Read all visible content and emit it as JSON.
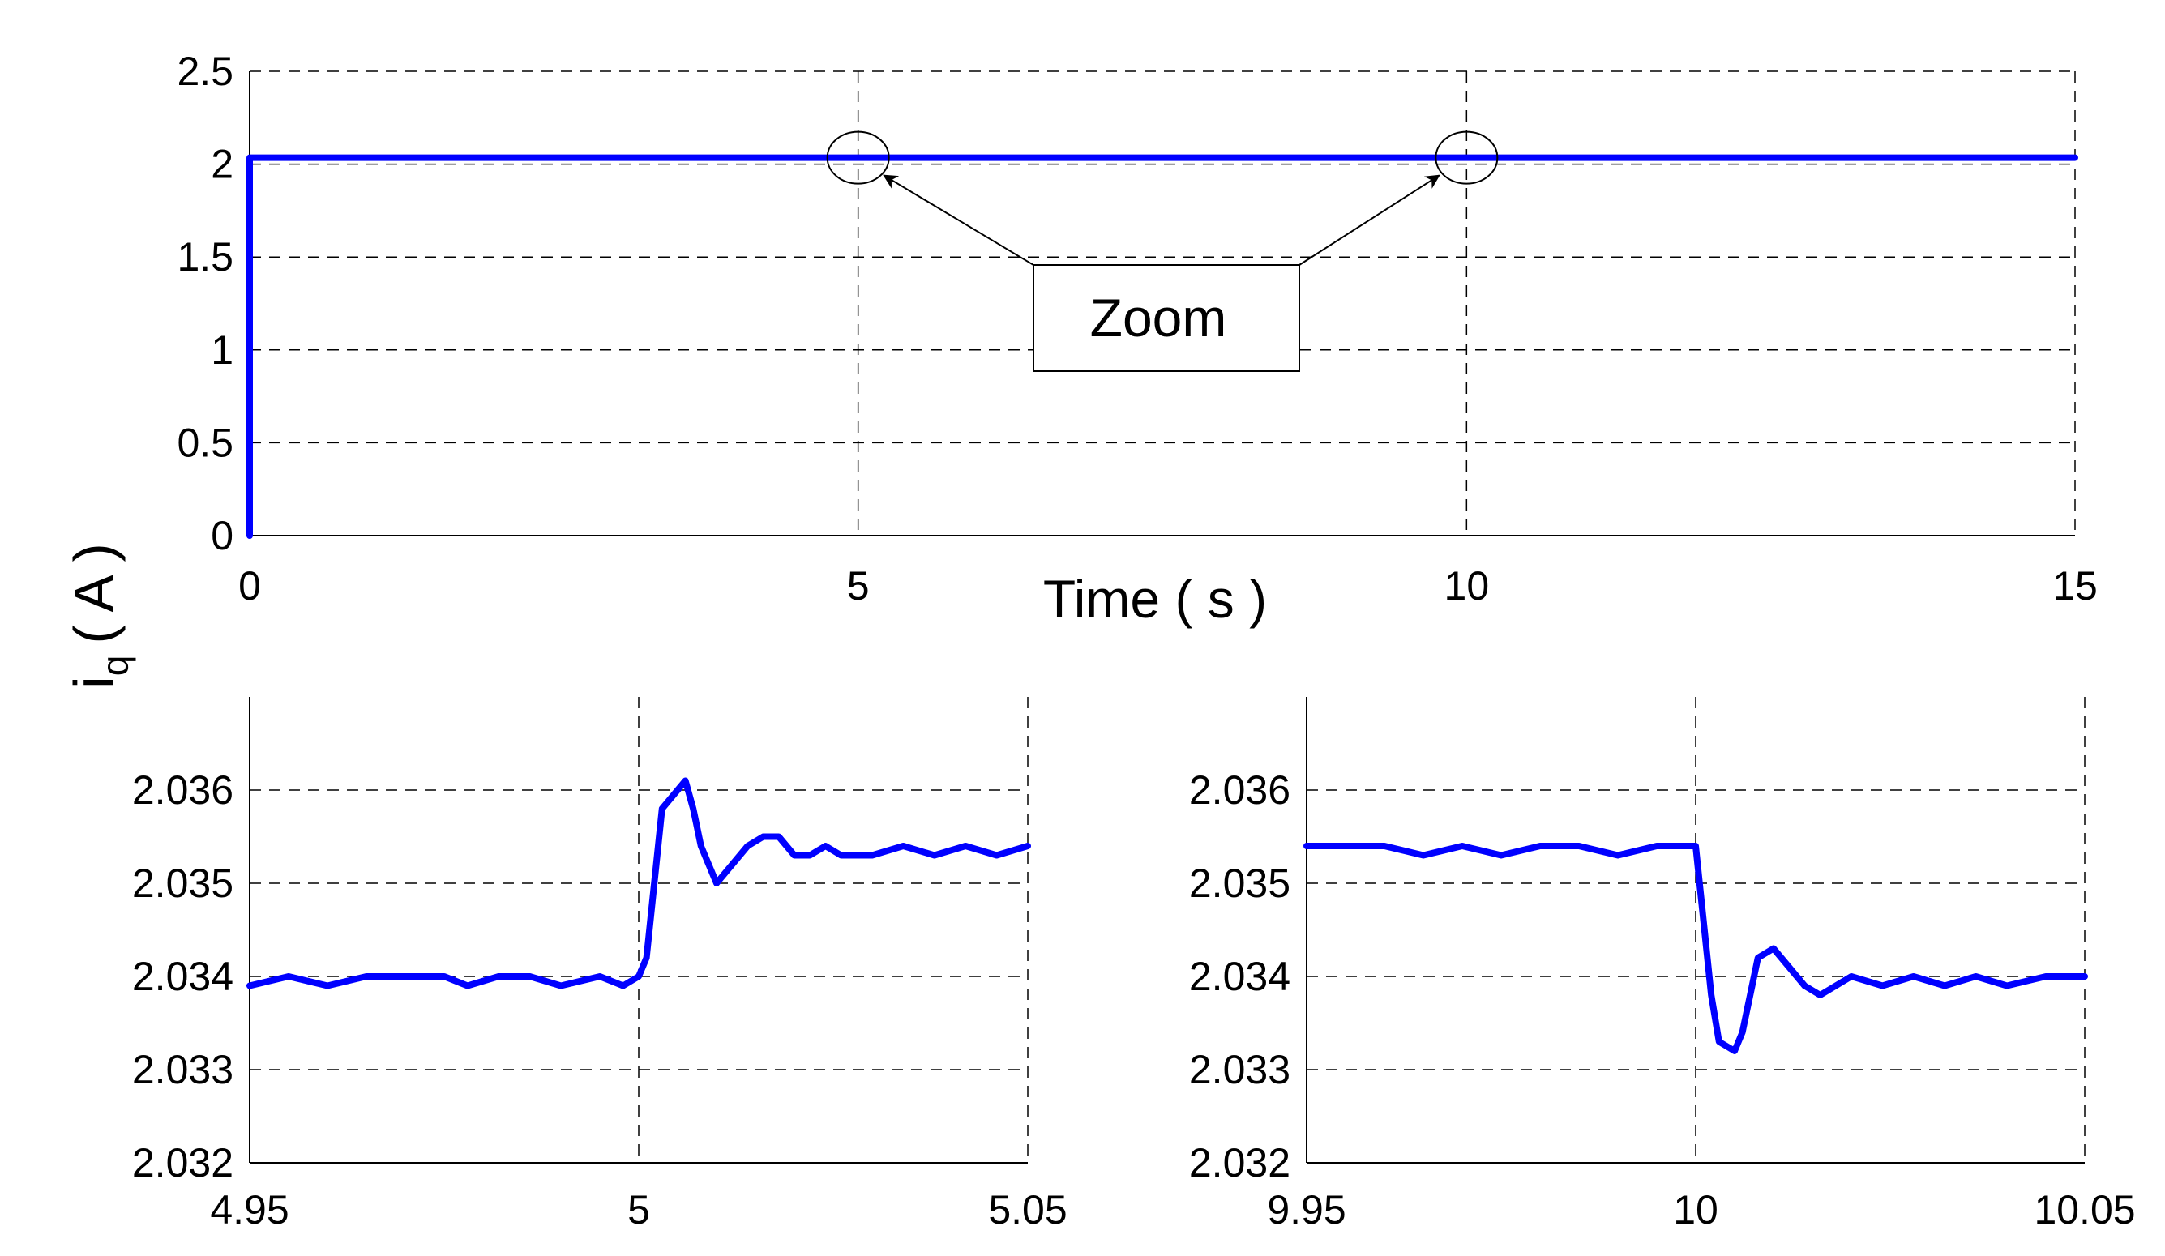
{
  "shared": {
    "ylabel_main": "i",
    "ylabel_sub": "q",
    "ylabel_unit": "( A )",
    "series_color": "#0000ff"
  },
  "chart_data": [
    {
      "type": "line",
      "xlabel": "Time ( s )",
      "xlim": [
        0,
        15
      ],
      "ylim": [
        0,
        2.5
      ],
      "x_ticks": [
        "0",
        "5",
        "10",
        "15"
      ],
      "y_ticks": [
        "0",
        "0.5",
        "1",
        "1.5",
        "2",
        "2.5"
      ],
      "grid": true,
      "annotation": "Zoom",
      "annotation_targets": [
        5,
        10
      ],
      "series": [
        {
          "x": [
            0,
            0,
            15
          ],
          "y": [
            0,
            2.035,
            2.035
          ]
        }
      ]
    },
    {
      "type": "line",
      "xlim": [
        4.95,
        5.05
      ],
      "ylim": [
        2.032,
        2.037
      ],
      "x_ticks": [
        "4.95",
        "5",
        "5.05"
      ],
      "y_ticks": [
        "2.032",
        "2.033",
        "2.034",
        "2.035",
        "2.036"
      ],
      "grid": true,
      "series": [
        {
          "x": [
            4.95,
            4.955,
            4.96,
            4.965,
            4.97,
            4.975,
            4.978,
            4.982,
            4.986,
            4.99,
            4.995,
            4.998,
            5.0,
            5.001,
            5.002,
            5.003,
            5.005,
            5.006,
            5.007,
            5.008,
            5.01,
            5.012,
            5.014,
            5.016,
            5.018,
            5.02,
            5.022,
            5.024,
            5.026,
            5.03,
            5.034,
            5.038,
            5.042,
            5.046,
            5.05
          ],
          "y": [
            2.0339,
            2.034,
            2.0339,
            2.034,
            2.034,
            2.034,
            2.0339,
            2.034,
            2.034,
            2.0339,
            2.034,
            2.0339,
            2.034,
            2.0342,
            2.035,
            2.0358,
            2.036,
            2.0361,
            2.0358,
            2.0354,
            2.035,
            2.0352,
            2.0354,
            2.0355,
            2.0355,
            2.0353,
            2.0353,
            2.0354,
            2.0353,
            2.0353,
            2.0354,
            2.0353,
            2.0354,
            2.0353,
            2.0354
          ]
        }
      ]
    },
    {
      "type": "line",
      "xlim": [
        9.95,
        10.05
      ],
      "ylim": [
        2.032,
        2.037
      ],
      "x_ticks": [
        "9.95",
        "10",
        "10.05"
      ],
      "y_ticks": [
        "2.032",
        "2.033",
        "2.034",
        "2.035",
        "2.036"
      ],
      "grid": true,
      "series": [
        {
          "x": [
            9.95,
            9.955,
            9.96,
            9.965,
            9.97,
            9.975,
            9.98,
            9.985,
            9.99,
            9.995,
            10.0,
            10.001,
            10.002,
            10.003,
            10.005,
            10.006,
            10.007,
            10.008,
            10.01,
            10.012,
            10.014,
            10.016,
            10.018,
            10.02,
            10.024,
            10.028,
            10.032,
            10.036,
            10.04,
            10.045,
            10.05
          ],
          "y": [
            2.0354,
            2.0354,
            2.0354,
            2.0353,
            2.0354,
            2.0353,
            2.0354,
            2.0354,
            2.0353,
            2.0354,
            2.0354,
            2.0346,
            2.0338,
            2.0333,
            2.0332,
            2.0334,
            2.0338,
            2.0342,
            2.0343,
            2.0341,
            2.0339,
            2.0338,
            2.0339,
            2.034,
            2.0339,
            2.034,
            2.0339,
            2.034,
            2.0339,
            2.034,
            2.034
          ]
        }
      ]
    }
  ]
}
